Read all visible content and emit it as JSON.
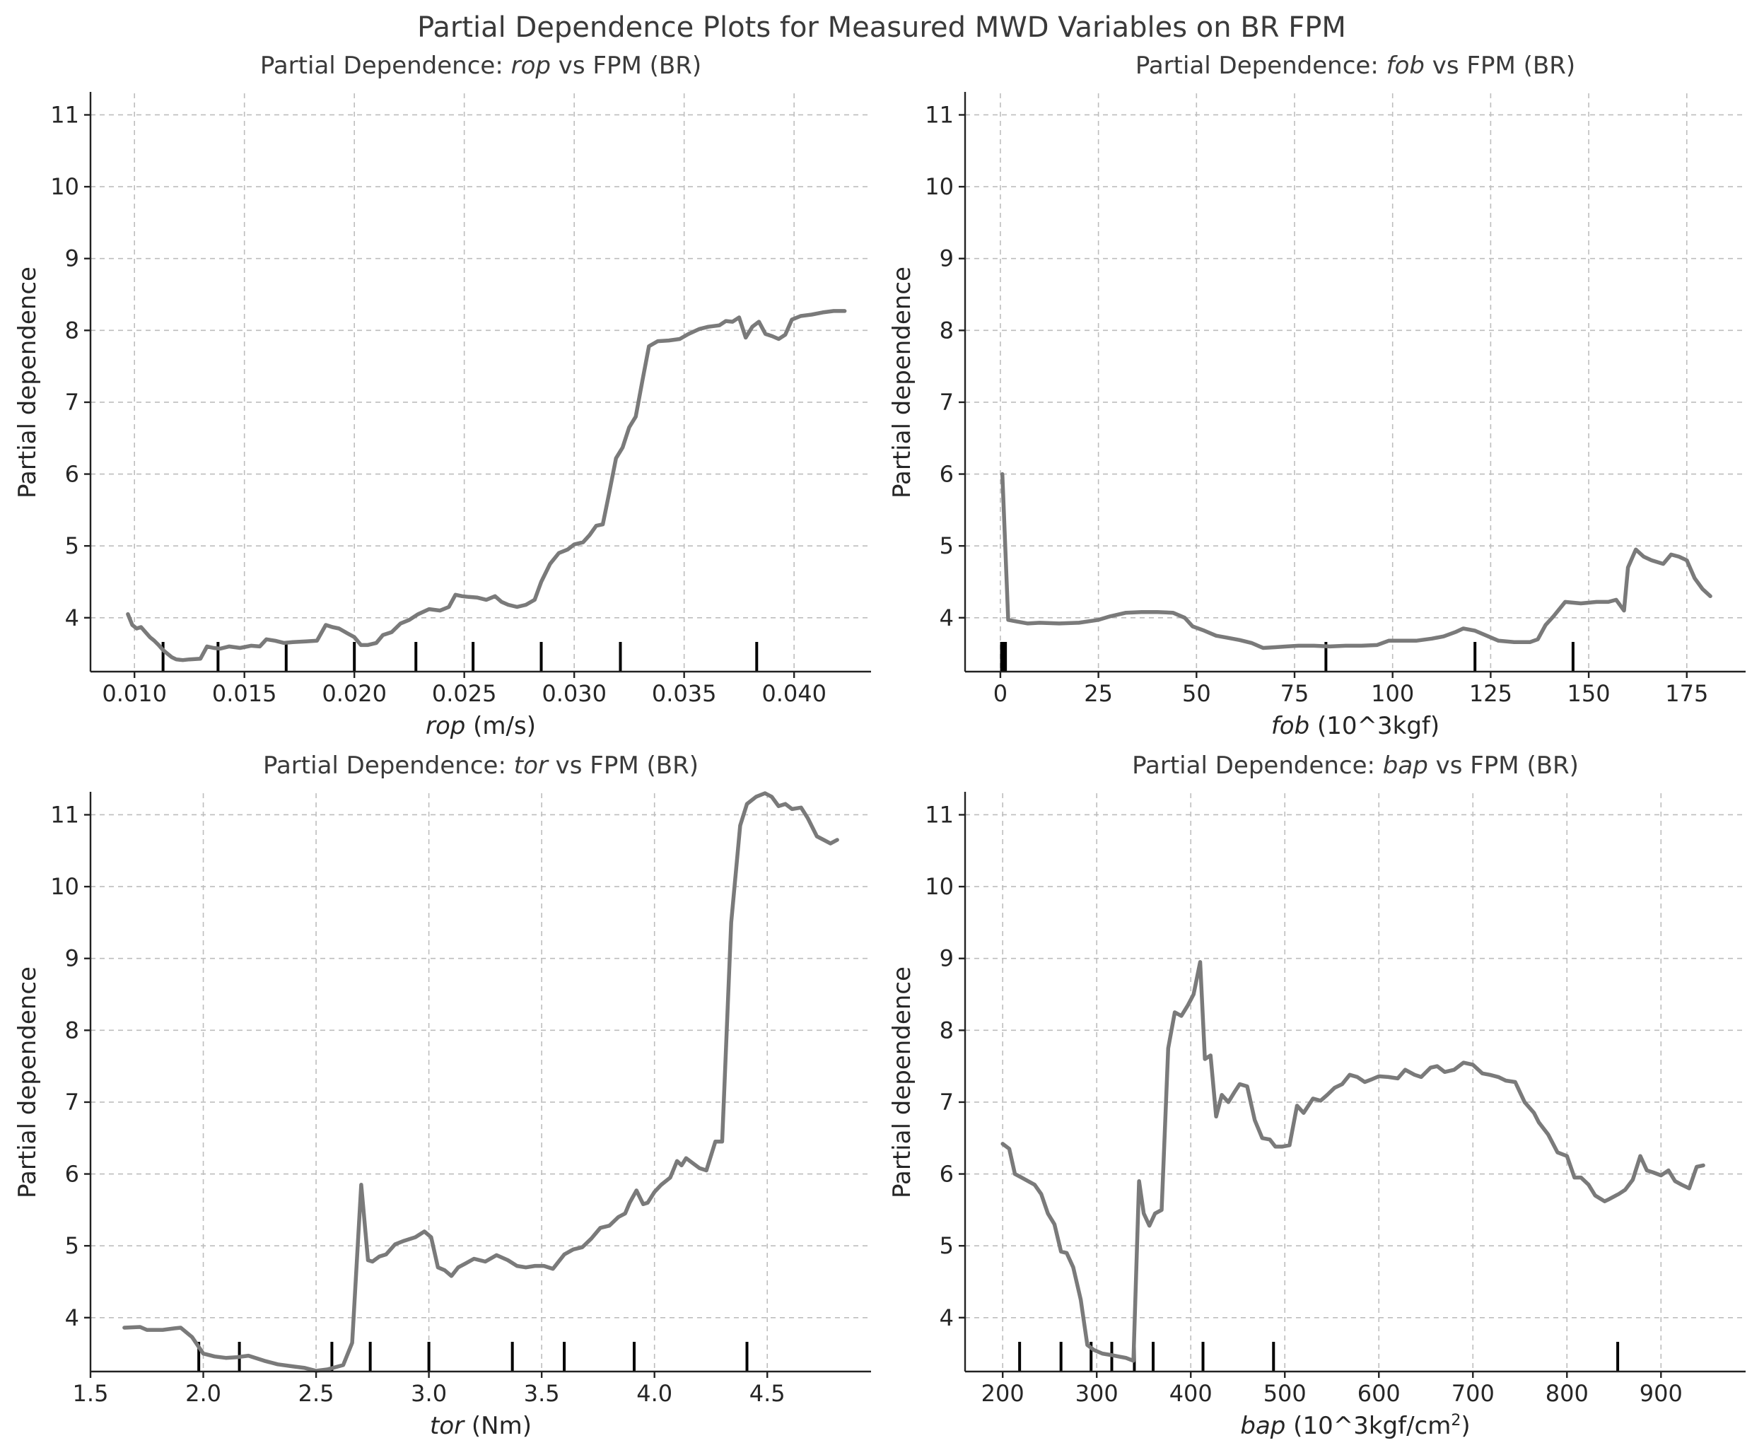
{
  "figure_title": "Partial Dependence Plots for Measured MWD Variables on BR FPM",
  "chart_data": [
    {
      "type": "line",
      "title_prefix": "Partial Dependence: ",
      "title_var": "rop",
      "title_suffix": " vs FPM (BR)",
      "xlabel_var": "rop",
      "xlabel_unit": " (m/s)",
      "ylabel": "Partial dependence",
      "xlim": [
        0.008,
        0.0435
      ],
      "ylim": [
        3.25,
        11.3
      ],
      "xticks": [
        0.01,
        0.015,
        0.02,
        0.025,
        0.03,
        0.035,
        0.04
      ],
      "xtick_labels": [
        "0.010",
        "0.015",
        "0.020",
        "0.025",
        "0.030",
        "0.035",
        "0.040"
      ],
      "yticks": [
        4,
        5,
        6,
        7,
        8,
        9,
        10,
        11
      ],
      "ytick_labels": [
        "4",
        "5",
        "6",
        "7",
        "8",
        "9",
        "10",
        "11"
      ],
      "grid": true,
      "deciles": [
        0.0113,
        0.0138,
        0.0169,
        0.02,
        0.0228,
        0.0254,
        0.0285,
        0.0321,
        0.0383
      ],
      "x": [
        0.0097,
        0.0099,
        0.0101,
        0.0103,
        0.0105,
        0.0107,
        0.0109,
        0.0111,
        0.0113,
        0.0115,
        0.0117,
        0.0119,
        0.0122,
        0.0125,
        0.013,
        0.0133,
        0.0136,
        0.0139,
        0.0143,
        0.0148,
        0.0153,
        0.0157,
        0.016,
        0.0164,
        0.0168,
        0.0172,
        0.0178,
        0.0183,
        0.0187,
        0.019,
        0.0193,
        0.0197,
        0.02,
        0.0203,
        0.0206,
        0.021,
        0.0213,
        0.0217,
        0.0221,
        0.0225,
        0.0229,
        0.0234,
        0.0239,
        0.0243,
        0.0246,
        0.0249,
        0.0252,
        0.0256,
        0.026,
        0.0264,
        0.0267,
        0.027,
        0.0274,
        0.0278,
        0.0282,
        0.0285,
        0.0289,
        0.0293,
        0.0297,
        0.03,
        0.0304,
        0.0307,
        0.031,
        0.0313,
        0.0316,
        0.0319,
        0.0322,
        0.0325,
        0.0328,
        0.0331,
        0.0334,
        0.0338,
        0.0343,
        0.0348,
        0.0352,
        0.0357,
        0.0361,
        0.0366,
        0.0369,
        0.0372,
        0.0375,
        0.0378,
        0.0381,
        0.0384,
        0.0387,
        0.039,
        0.0393,
        0.0396,
        0.0399,
        0.0403,
        0.0408,
        0.0413,
        0.0418,
        0.0423
      ],
      "y": [
        4.05,
        3.9,
        3.85,
        3.87,
        3.8,
        3.73,
        3.68,
        3.62,
        3.55,
        3.5,
        3.45,
        3.42,
        3.41,
        3.42,
        3.43,
        3.6,
        3.58,
        3.57,
        3.6,
        3.58,
        3.61,
        3.6,
        3.7,
        3.68,
        3.65,
        3.66,
        3.67,
        3.68,
        3.9,
        3.87,
        3.85,
        3.78,
        3.73,
        3.62,
        3.62,
        3.65,
        3.76,
        3.8,
        3.92,
        3.97,
        4.05,
        4.12,
        4.1,
        4.15,
        4.32,
        4.3,
        4.29,
        4.28,
        4.25,
        4.3,
        4.22,
        4.18,
        4.15,
        4.18,
        4.25,
        4.5,
        4.75,
        4.9,
        4.95,
        5.02,
        5.05,
        5.15,
        5.28,
        5.3,
        5.75,
        6.22,
        6.37,
        6.65,
        6.8,
        7.3,
        7.78,
        7.85,
        7.86,
        7.88,
        7.95,
        8.02,
        8.05,
        8.07,
        8.13,
        8.12,
        8.18,
        7.9,
        8.05,
        8.12,
        7.95,
        7.92,
        7.88,
        7.94,
        8.15,
        8.2,
        8.22,
        8.25,
        8.27,
        8.27
      ]
    },
    {
      "type": "line",
      "title_prefix": "Partial Dependence: ",
      "title_var": "fob",
      "title_suffix": " vs FPM (BR)",
      "xlabel_var": "fob",
      "xlabel_unit": " (10^3kgf)",
      "ylabel": "Partial dependence",
      "xlim": [
        -9,
        190
      ],
      "ylim": [
        3.25,
        11.3
      ],
      "xticks": [
        0,
        25,
        50,
        75,
        100,
        125,
        150,
        175
      ],
      "xtick_labels": [
        "0",
        "25",
        "50",
        "75",
        "100",
        "125",
        "150",
        "175"
      ],
      "yticks": [
        4,
        5,
        6,
        7,
        8,
        9,
        10,
        11
      ],
      "ytick_labels": [
        "4",
        "5",
        "6",
        "7",
        "8",
        "9",
        "10",
        "11"
      ],
      "grid": true,
      "deciles": [
        0.3,
        0.8,
        1.3,
        83,
        121,
        146
      ],
      "x": [
        0.5,
        2,
        4,
        7,
        10,
        15,
        20,
        25,
        28,
        32,
        36,
        40,
        44,
        47,
        49,
        52,
        55,
        58,
        61,
        64,
        67,
        70,
        73,
        76,
        80,
        84,
        88,
        92,
        96,
        99,
        102,
        106,
        110,
        113,
        116,
        118,
        121,
        124,
        127,
        131,
        135,
        137,
        139,
        141,
        144,
        148,
        152,
        155,
        157,
        159,
        160,
        162,
        164,
        166,
        169,
        171,
        173,
        175,
        177,
        179,
        181
      ],
      "y": [
        6.0,
        3.97,
        3.95,
        3.92,
        3.93,
        3.92,
        3.93,
        3.97,
        4.02,
        4.07,
        4.08,
        4.08,
        4.07,
        4.0,
        3.88,
        3.82,
        3.75,
        3.72,
        3.69,
        3.65,
        3.58,
        3.59,
        3.6,
        3.61,
        3.61,
        3.6,
        3.61,
        3.61,
        3.62,
        3.68,
        3.68,
        3.68,
        3.71,
        3.74,
        3.8,
        3.85,
        3.82,
        3.75,
        3.68,
        3.66,
        3.66,
        3.7,
        3.9,
        4.02,
        4.22,
        4.2,
        4.22,
        4.22,
        4.25,
        4.1,
        4.7,
        4.95,
        4.85,
        4.8,
        4.75,
        4.88,
        4.85,
        4.8,
        4.55,
        4.4,
        4.3
      ]
    },
    {
      "type": "line",
      "title_prefix": "Partial Dependence: ",
      "title_var": "tor",
      "title_suffix": " vs FPM (BR)",
      "xlabel_var": "tor",
      "xlabel_unit": " (Nm)",
      "ylabel": "Partial dependence",
      "xlim": [
        1.5,
        4.96
      ],
      "ylim": [
        3.25,
        11.3
      ],
      "xticks": [
        1.5,
        2.0,
        2.5,
        3.0,
        3.5,
        4.0,
        4.5
      ],
      "xtick_labels": [
        "1.5",
        "2.0",
        "2.5",
        "3.0",
        "3.5",
        "4.0",
        "4.5"
      ],
      "yticks": [
        4,
        5,
        6,
        7,
        8,
        9,
        10,
        11
      ],
      "ytick_labels": [
        "4",
        "5",
        "6",
        "7",
        "8",
        "9",
        "10",
        "11"
      ],
      "grid": true,
      "deciles": [
        1.98,
        2.16,
        2.57,
        2.74,
        3.0,
        3.37,
        3.6,
        3.91,
        4.41
      ],
      "x": [
        1.65,
        1.72,
        1.75,
        1.82,
        1.87,
        1.9,
        1.95,
        2.0,
        2.05,
        2.1,
        2.15,
        2.2,
        2.27,
        2.33,
        2.4,
        2.45,
        2.5,
        2.55,
        2.62,
        2.66,
        2.7,
        2.73,
        2.75,
        2.78,
        2.81,
        2.85,
        2.89,
        2.94,
        2.98,
        3.01,
        3.04,
        3.07,
        3.1,
        3.13,
        3.16,
        3.2,
        3.25,
        3.3,
        3.35,
        3.39,
        3.43,
        3.47,
        3.51,
        3.55,
        3.6,
        3.64,
        3.68,
        3.72,
        3.76,
        3.8,
        3.84,
        3.87,
        3.89,
        3.92,
        3.95,
        3.97,
        4.0,
        4.03,
        4.07,
        4.1,
        4.12,
        4.14,
        4.17,
        4.2,
        4.23,
        4.27,
        4.3,
        4.34,
        4.38,
        4.41,
        4.45,
        4.49,
        4.52,
        4.55,
        4.58,
        4.61,
        4.65,
        4.68,
        4.72,
        4.75,
        4.78,
        4.81
      ],
      "y": [
        3.86,
        3.87,
        3.83,
        3.83,
        3.85,
        3.86,
        3.73,
        3.5,
        3.46,
        3.44,
        3.45,
        3.47,
        3.4,
        3.35,
        3.32,
        3.3,
        3.26,
        3.28,
        3.34,
        3.65,
        5.85,
        4.8,
        4.78,
        4.85,
        4.88,
        5.02,
        5.07,
        5.12,
        5.2,
        5.12,
        4.7,
        4.66,
        4.58,
        4.7,
        4.75,
        4.82,
        4.78,
        4.87,
        4.8,
        4.72,
        4.7,
        4.72,
        4.72,
        4.68,
        4.88,
        4.95,
        4.98,
        5.1,
        5.25,
        5.28,
        5.4,
        5.45,
        5.6,
        5.77,
        5.58,
        5.6,
        5.75,
        5.85,
        5.95,
        6.18,
        6.12,
        6.22,
        6.15,
        6.08,
        6.05,
        6.45,
        6.45,
        9.5,
        10.85,
        11.15,
        11.25,
        11.3,
        11.25,
        11.12,
        11.15,
        11.08,
        11.1,
        10.95,
        10.7,
        10.65,
        10.6,
        10.65
      ]
    },
    {
      "type": "line",
      "title_prefix": "Partial Dependence: ",
      "title_var": "bap",
      "title_suffix": " vs FPM (BR)",
      "xlabel_var": "bap",
      "xlabel_unit": " (10^3kgf/cm",
      "xlabel_sup": "2",
      "xlabel_close": ")",
      "ylabel": "Partial dependence",
      "xlim": [
        160,
        990
      ],
      "ylim": [
        3.25,
        11.3
      ],
      "xticks": [
        200,
        300,
        400,
        500,
        600,
        700,
        800,
        900
      ],
      "xtick_labels": [
        "200",
        "300",
        "400",
        "500",
        "600",
        "700",
        "800",
        "900"
      ],
      "yticks": [
        4,
        5,
        6,
        7,
        8,
        9,
        10,
        11
      ],
      "ytick_labels": [
        "4",
        "5",
        "6",
        "7",
        "8",
        "9",
        "10",
        "11"
      ],
      "grid": true,
      "deciles": [
        218,
        262,
        294,
        316,
        340,
        360,
        413,
        488,
        854
      ],
      "x": [
        200,
        207,
        213,
        220,
        227,
        234,
        241,
        248,
        255,
        262,
        268,
        275,
        283,
        290,
        297,
        306,
        315,
        323,
        331,
        339,
        345,
        350,
        356,
        362,
        369,
        376,
        383,
        390,
        397,
        403,
        410,
        415,
        421,
        427,
        433,
        440,
        447,
        452,
        460,
        468,
        476,
        484,
        490,
        497,
        505,
        513,
        520,
        530,
        538,
        545,
        553,
        561,
        569,
        577,
        585,
        593,
        600,
        610,
        620,
        628,
        638,
        645,
        655,
        662,
        670,
        680,
        690,
        700,
        710,
        718,
        727,
        735,
        745,
        755,
        765,
        770,
        780,
        790,
        800,
        808,
        815,
        823,
        830,
        840,
        845,
        855,
        862,
        870,
        878,
        885,
        892,
        900,
        908,
        915,
        922,
        930,
        938,
        945
      ],
      "y": [
        6.42,
        6.35,
        6.0,
        5.95,
        5.9,
        5.85,
        5.72,
        5.45,
        5.3,
        4.92,
        4.9,
        4.7,
        4.25,
        3.62,
        3.55,
        3.5,
        3.48,
        3.46,
        3.44,
        3.4,
        5.9,
        5.45,
        5.28,
        5.45,
        5.5,
        7.75,
        8.25,
        8.2,
        8.35,
        8.5,
        8.95,
        7.6,
        7.65,
        6.8,
        7.1,
        7.0,
        7.15,
        7.25,
        7.22,
        6.75,
        6.5,
        6.48,
        6.38,
        6.38,
        6.4,
        6.95,
        6.85,
        7.05,
        7.02,
        7.1,
        7.2,
        7.25,
        7.38,
        7.35,
        7.28,
        7.32,
        7.36,
        7.35,
        7.33,
        7.45,
        7.38,
        7.35,
        7.48,
        7.5,
        7.42,
        7.45,
        7.55,
        7.52,
        7.4,
        7.38,
        7.35,
        7.3,
        7.28,
        7.0,
        6.85,
        6.72,
        6.55,
        6.3,
        6.25,
        5.95,
        5.95,
        5.85,
        5.7,
        5.62,
        5.65,
        5.72,
        5.78,
        5.92,
        6.25,
        6.05,
        6.02,
        5.98,
        6.05,
        5.9,
        5.85,
        5.8,
        6.1,
        6.12
      ]
    }
  ]
}
